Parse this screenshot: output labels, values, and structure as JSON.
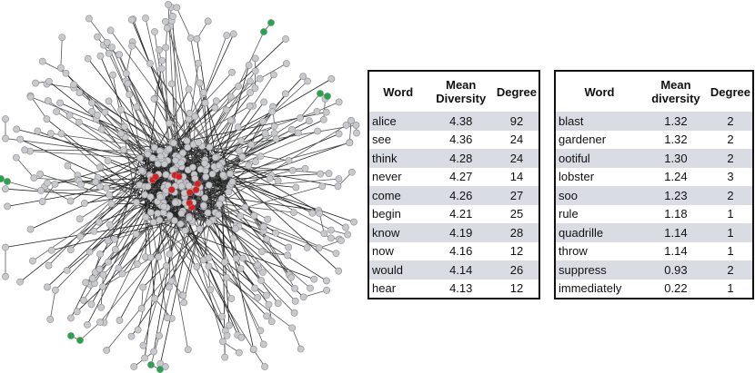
{
  "network": {
    "node_colors": {
      "default": "#c8c9cc",
      "highlight_high": "#e01b1b",
      "highlight_low": "#1fa84a",
      "edge": "#222222",
      "edge_light": "#555555"
    },
    "high_diversity_nodes": 10,
    "low_diversity_chains": 5
  },
  "table_left": {
    "headers": {
      "word": "Word",
      "mean_diversity_1": "Mean",
      "mean_diversity_2": "Diversity",
      "degree": "Degree"
    },
    "rows": [
      {
        "word": "alice",
        "diversity": "4.38",
        "degree": "92"
      },
      {
        "word": "see",
        "diversity": "4.36",
        "degree": "24"
      },
      {
        "word": "think",
        "diversity": "4.28",
        "degree": "24"
      },
      {
        "word": "never",
        "diversity": "4.27",
        "degree": "14"
      },
      {
        "word": "come",
        "diversity": "4.26",
        "degree": "27"
      },
      {
        "word": "begin",
        "diversity": "4.21",
        "degree": "25"
      },
      {
        "word": "know",
        "diversity": "4.19",
        "degree": "28"
      },
      {
        "word": "now",
        "diversity": "4.16",
        "degree": "12"
      },
      {
        "word": "would",
        "diversity": "4.14",
        "degree": "26"
      },
      {
        "word": "hear",
        "diversity": "4.13",
        "degree": "12"
      }
    ]
  },
  "table_right": {
    "headers": {
      "word": "Word",
      "mean_diversity_1": "Mean",
      "mean_diversity_2": "diversity",
      "degree": "Degree"
    },
    "rows": [
      {
        "word": "blast",
        "diversity": "1.32",
        "degree": "2"
      },
      {
        "word": "gardener",
        "diversity": "1.32",
        "degree": "2"
      },
      {
        "word": "ootiful",
        "diversity": "1.30",
        "degree": "2"
      },
      {
        "word": "lobster",
        "diversity": "1.24",
        "degree": "3"
      },
      {
        "word": "soo",
        "diversity": "1.23",
        "degree": "2"
      },
      {
        "word": "rule",
        "diversity": "1.18",
        "degree": "1"
      },
      {
        "word": "quadrille",
        "diversity": "1.14",
        "degree": "1"
      },
      {
        "word": "throw",
        "diversity": "1.14",
        "degree": "1"
      },
      {
        "word": "suppress",
        "diversity": "0.93",
        "degree": "2"
      },
      {
        "word": "immediately",
        "diversity": "0.22",
        "degree": "1"
      }
    ]
  }
}
